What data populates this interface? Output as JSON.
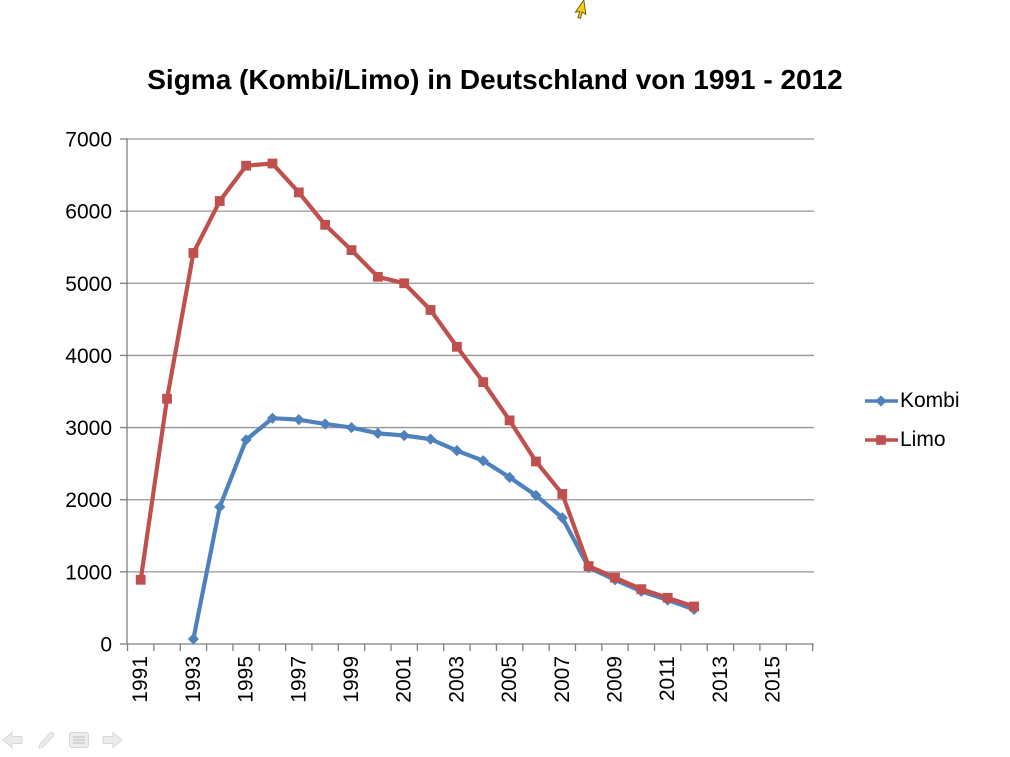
{
  "chart_data": {
    "type": "line",
    "title": "Sigma (Kombi/Limo) in Deutschland von 1991 - 2012",
    "categories": [
      1991,
      1992,
      1993,
      1994,
      1995,
      1996,
      1997,
      1998,
      1999,
      2000,
      2001,
      2002,
      2003,
      2004,
      2005,
      2006,
      2007,
      2008,
      2009,
      2010,
      2011,
      2012
    ],
    "series": [
      {
        "name": "Kombi",
        "color": "#4F81BD",
        "marker": "diamond",
        "values": [
          null,
          null,
          70,
          1900,
          2830,
          3130,
          3110,
          3050,
          3000,
          2920,
          2890,
          2840,
          2680,
          2540,
          2310,
          2060,
          1750,
          1060,
          890,
          730,
          610,
          480
        ]
      },
      {
        "name": "Limo",
        "color": "#C0504D",
        "marker": "square",
        "values": [
          890,
          3400,
          5420,
          6140,
          6630,
          6660,
          6260,
          5810,
          5460,
          5090,
          5000,
          4630,
          4120,
          3630,
          3100,
          2530,
          2080,
          1080,
          920,
          760,
          640,
          520
        ]
      }
    ],
    "ylim": [
      0,
      7000
    ],
    "y_tick_step": 1000,
    "y_tick_labels": [
      "0",
      "1000",
      "2000",
      "3000",
      "4000",
      "5000",
      "6000",
      "7000"
    ],
    "x_tick_labels": [
      "1991",
      "1993",
      "1995",
      "1997",
      "1999",
      "2001",
      "2003",
      "2005",
      "2007",
      "2009",
      "2011",
      "2013",
      "2015"
    ],
    "x_axis_last_year": 2016,
    "grid": true,
    "legend_position": "right",
    "colors": {
      "gridline": "#969696",
      "axis": "#808080",
      "text": "#000000"
    }
  },
  "cursor": {
    "icon": "yellow-arrow-pointer",
    "fill": "#F3CF1E",
    "outline": "#7A6400"
  },
  "nav": {
    "buttons": [
      {
        "icon": "back-arrow-icon"
      },
      {
        "icon": "pen-icon"
      },
      {
        "icon": "slide-menu-icon"
      },
      {
        "icon": "forward-arrow-icon"
      }
    ],
    "icon_fill": "#ECECEC",
    "icon_stroke": "#D9D9D9"
  }
}
